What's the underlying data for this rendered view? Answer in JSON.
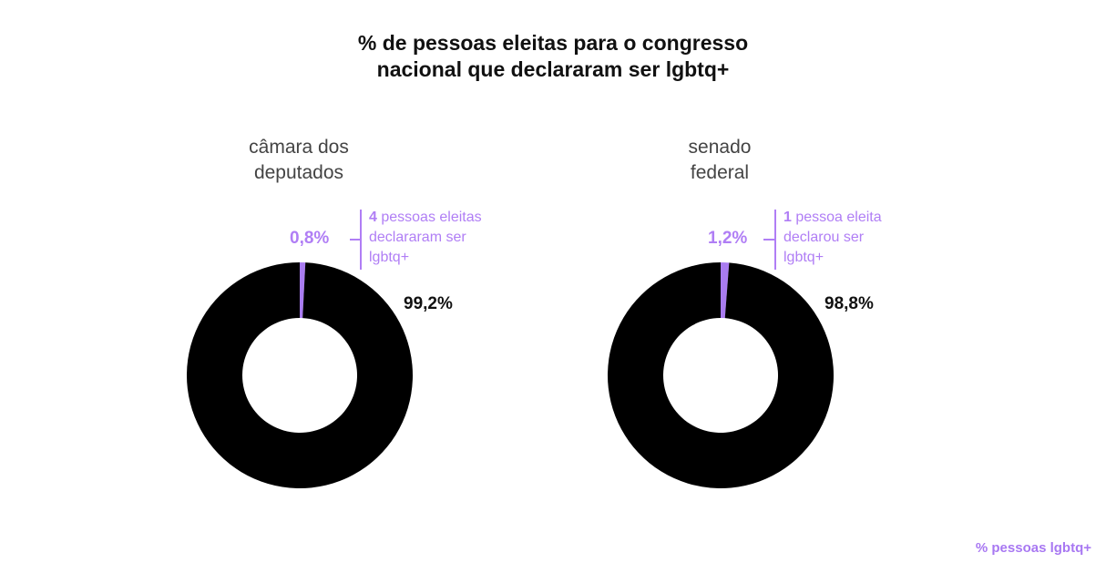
{
  "title_line1": "% de pessoas eleitas para o congresso",
  "title_line2": "nacional que declararam ser lgbtq+",
  "legend_label": "% pessoas lgbtq+",
  "colors": {
    "lgbtq": "#a97cf0",
    "rest": "#000000",
    "accent_text": "#b07ef5"
  },
  "chart_data": [
    {
      "type": "pie",
      "subtitle_line1": "câmara dos",
      "subtitle_line2": "deputados",
      "slices": [
        {
          "label": "0,8%",
          "value": 0.8
        },
        {
          "label": "99,2%",
          "value": 99.2
        }
      ],
      "note_count": "4",
      "note_rest_line1": " pessoas eleitas",
      "note_line2": "declararam ser",
      "note_line3": "lgbtq+"
    },
    {
      "type": "pie",
      "subtitle_line1": "senado",
      "subtitle_line2": "federal",
      "slices": [
        {
          "label": "1,2%",
          "value": 1.2
        },
        {
          "label": "98,8%",
          "value": 98.8
        }
      ],
      "note_count": "1",
      "note_rest_line1": " pessoa eleita",
      "note_line2": "declarou ser",
      "note_line3": "lgbtq+"
    }
  ]
}
